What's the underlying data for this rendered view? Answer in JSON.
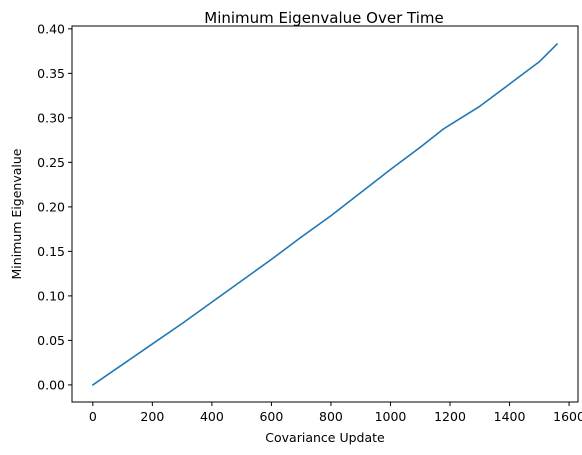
{
  "chart_data": {
    "type": "line",
    "title": "Minimum Eigenvalue Over Time",
    "xlabel": "Covariance Update",
    "ylabel": "Minimum Eigenvalue",
    "xlim": [
      -70,
      1630
    ],
    "ylim": [
      -0.0192,
      0.4032
    ],
    "xticks": [
      0,
      200,
      400,
      600,
      800,
      1000,
      1200,
      1400,
      1600
    ],
    "xtick_labels": [
      "0",
      "200",
      "400",
      "600",
      "800",
      "1000",
      "1200",
      "1400",
      "1600"
    ],
    "yticks": [
      0.0,
      0.05,
      0.1,
      0.15,
      0.2,
      0.25,
      0.3,
      0.35,
      0.4
    ],
    "ytick_labels": [
      "0.00",
      "0.05",
      "0.10",
      "0.15",
      "0.20",
      "0.25",
      "0.30",
      "0.35",
      "0.40"
    ],
    "grid": false,
    "series": [
      {
        "color": "#1f77b4",
        "x": [
          0,
          100,
          200,
          300,
          400,
          500,
          600,
          700,
          800,
          900,
          1000,
          1100,
          1180,
          1300,
          1400,
          1500,
          1560
        ],
        "y": [
          0.0,
          0.023,
          0.046,
          0.069,
          0.093,
          0.117,
          0.141,
          0.166,
          0.19,
          0.216,
          0.242,
          0.267,
          0.288,
          0.313,
          0.338,
          0.363,
          0.383
        ]
      }
    ]
  }
}
